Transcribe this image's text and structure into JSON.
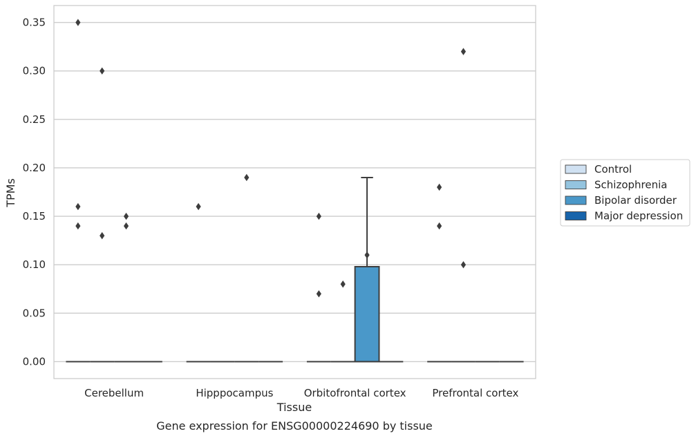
{
  "chart_data": {
    "type": "box",
    "title": "Gene expression for ENSG00000224690 by tissue",
    "xlabel": "Tissue",
    "ylabel": "TPMs",
    "categories": [
      "Cerebellum",
      "Hipppocampus",
      "Orbitofrontal cortex",
      "Prefrontal cortex"
    ],
    "ylim": [
      -0.0175,
      0.3675
    ],
    "yticks": [
      "0.00",
      "0.05",
      "0.10",
      "0.15",
      "0.20",
      "0.25",
      "0.30",
      "0.35"
    ],
    "grid": true,
    "legend_position": "right",
    "series": [
      {
        "name": "Control",
        "color": "#d0e1f2",
        "boxes": [
          {
            "category": "Cerebellum",
            "q1": 0,
            "median": 0,
            "q3": 0,
            "whisker_low": 0,
            "whisker_high": 0,
            "outliers": [
              0.35,
              0.16,
              0.14
            ]
          },
          {
            "category": "Hipppocampus",
            "q1": 0,
            "median": 0,
            "q3": 0,
            "whisker_low": 0,
            "whisker_high": 0,
            "outliers": [
              0.16
            ]
          },
          {
            "category": "Orbitofrontal cortex",
            "q1": 0,
            "median": 0,
            "q3": 0,
            "whisker_low": 0,
            "whisker_high": 0,
            "outliers": [
              0.07,
              0.15
            ]
          },
          {
            "category": "Prefrontal cortex",
            "q1": 0,
            "median": 0,
            "q3": 0,
            "whisker_low": 0,
            "whisker_high": 0,
            "outliers": [
              0.18,
              0.14
            ]
          }
        ]
      },
      {
        "name": "Schizophrenia",
        "color": "#94c4df",
        "boxes": [
          {
            "category": "Cerebellum",
            "q1": 0,
            "median": 0,
            "q3": 0,
            "whisker_low": 0,
            "whisker_high": 0,
            "outliers": [
              0.3,
              0.13
            ]
          },
          {
            "category": "Hipppocampus",
            "q1": 0,
            "median": 0,
            "q3": 0,
            "whisker_low": 0,
            "whisker_high": 0,
            "outliers": []
          },
          {
            "category": "Orbitofrontal cortex",
            "q1": 0,
            "median": 0,
            "q3": 0,
            "whisker_low": 0,
            "whisker_high": 0,
            "outliers": [
              0.08
            ]
          },
          {
            "category": "Prefrontal cortex",
            "q1": 0,
            "median": 0,
            "q3": 0,
            "whisker_low": 0,
            "whisker_high": 0,
            "outliers": [
              0.32,
              0.1
            ]
          }
        ]
      },
      {
        "name": "Bipolar disorder",
        "color": "#4a98c9",
        "boxes": [
          {
            "category": "Cerebellum",
            "q1": 0,
            "median": 0,
            "q3": 0,
            "whisker_low": 0,
            "whisker_high": 0,
            "outliers": [
              0.15,
              0.14
            ]
          },
          {
            "category": "Hipppocampus",
            "q1": 0,
            "median": 0,
            "q3": 0,
            "whisker_low": 0,
            "whisker_high": 0,
            "outliers": [
              0.19
            ]
          },
          {
            "category": "Orbitofrontal cortex",
            "q1": 0,
            "median": 0,
            "q3": 0.098,
            "whisker_low": 0,
            "whisker_high": 0.19,
            "outliers": [
              0.11
            ]
          },
          {
            "category": "Prefrontal cortex",
            "q1": 0,
            "median": 0,
            "q3": 0,
            "whisker_low": 0,
            "whisker_high": 0,
            "outliers": []
          }
        ]
      },
      {
        "name": "Major depression",
        "color": "#1764ab",
        "boxes": [
          {
            "category": "Cerebellum",
            "q1": 0,
            "median": 0,
            "q3": 0,
            "whisker_low": 0,
            "whisker_high": 0,
            "outliers": []
          },
          {
            "category": "Hipppocampus",
            "q1": 0,
            "median": 0,
            "q3": 0,
            "whisker_low": 0,
            "whisker_high": 0,
            "outliers": []
          },
          {
            "category": "Orbitofrontal cortex",
            "q1": 0,
            "median": 0,
            "q3": 0,
            "whisker_low": 0,
            "whisker_high": 0,
            "outliers": []
          },
          {
            "category": "Prefrontal cortex",
            "q1": 0,
            "median": 0,
            "q3": 0,
            "whisker_low": 0,
            "whisker_high": 0,
            "outliers": []
          }
        ]
      }
    ]
  }
}
